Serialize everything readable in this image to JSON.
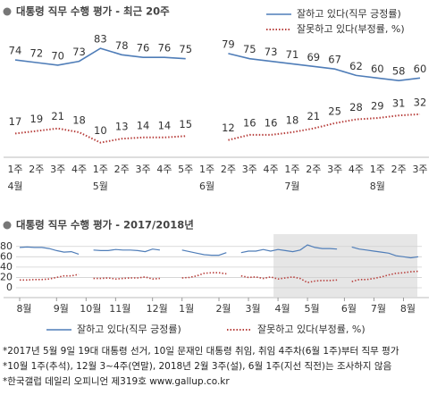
{
  "chart_data": [
    {
      "type": "line",
      "title": "대통령 직무 수행 평가 - 최근 20주",
      "categories": [
        "1주",
        "2주",
        "3주",
        "4주",
        "1주",
        "2주",
        "3주",
        "4주",
        "5주",
        "1주",
        "2주",
        "3주",
        "4주",
        "1주",
        "2주",
        "3주",
        "4주",
        "1주",
        "2주",
        "3주"
      ],
      "month_labels": [
        "4월",
        null,
        null,
        null,
        "5월",
        null,
        null,
        null,
        null,
        "6월",
        null,
        null,
        null,
        "7월",
        null,
        null,
        null,
        "8월",
        null,
        null
      ],
      "ylim": [
        0,
        90
      ],
      "series": [
        {
          "name": "잘하고 있다(직무 긍정률)",
          "color": "#4f7db8",
          "style": "solid",
          "values": [
            74,
            72,
            70,
            73,
            83,
            78,
            76,
            76,
            75,
            null,
            79,
            75,
            73,
            71,
            69,
            67,
            62,
            60,
            58,
            60
          ]
        },
        {
          "name": "잘못하고 있다(부정률, %)",
          "color": "#b8413e",
          "style": "dotted",
          "values": [
            17,
            19,
            21,
            18,
            10,
            13,
            14,
            14,
            15,
            null,
            12,
            16,
            16,
            18,
            21,
            25,
            28,
            29,
            31,
            32
          ]
        }
      ]
    },
    {
      "type": "line",
      "title": "대통령 직무 수행 평가 - 2017/2018년",
      "categories": [
        "8월",
        null,
        null,
        null,
        null,
        "9월",
        null,
        null,
        null,
        "10월",
        null,
        null,
        null,
        "11월",
        null,
        null,
        null,
        null,
        "12월",
        null,
        null,
        null,
        "1월",
        null,
        null,
        null,
        null,
        "2월",
        null,
        null,
        null,
        "3월",
        null,
        null,
        null,
        "4월",
        null,
        null,
        null,
        "5월",
        null,
        null,
        null,
        null,
        "6월",
        null,
        null,
        null,
        "7월",
        null,
        null,
        null,
        "8월",
        null,
        null
      ],
      "ylim": [
        0,
        90
      ],
      "yticks": [
        0,
        20,
        40,
        60,
        80
      ],
      "grid": true,
      "series": [
        {
          "name": "잘하고 있다(직무 긍정률)",
          "color": "#4f7db8",
          "style": "solid",
          "values": [
            78,
            79,
            78,
            78,
            76,
            72,
            69,
            70,
            65,
            null,
            73,
            72,
            72,
            74,
            73,
            73,
            72,
            70,
            75,
            73,
            null,
            null,
            73,
            70,
            67,
            64,
            63,
            63,
            68,
            null,
            68,
            71,
            71,
            74,
            71,
            74,
            72,
            70,
            73,
            83,
            78,
            76,
            76,
            75,
            null,
            79,
            75,
            73,
            71,
            69,
            67,
            62,
            60,
            58,
            60
          ]
        },
        {
          "name": "잘못하고 있다(부정률, %)",
          "color": "#b8413e",
          "style": "dotted",
          "values": [
            15,
            15,
            16,
            16,
            17,
            20,
            23,
            23,
            26,
            null,
            18,
            18,
            19,
            17,
            18,
            19,
            19,
            21,
            17,
            18,
            null,
            null,
            19,
            20,
            23,
            28,
            29,
            29,
            27,
            null,
            23,
            20,
            21,
            18,
            21,
            17,
            19,
            21,
            18,
            10,
            13,
            14,
            14,
            15,
            null,
            12,
            16,
            16,
            18,
            21,
            25,
            28,
            29,
            31,
            32
          ]
        }
      ]
    }
  ],
  "notes": [
    "*2017년 5월 9일 19대 대통령 선거, 10일 문재인 대통령 취임, 취임 4주차(6월 1주)부터 직무 평가",
    "*10월 1주(추석), 12월 3~4주(연말), 2018년 2월 3주(설), 6월 1주(지선 직전)는 조사하지 않음",
    "*한국갤럽 데일리 오피니언 제319호 www.gallup.co.kr"
  ]
}
